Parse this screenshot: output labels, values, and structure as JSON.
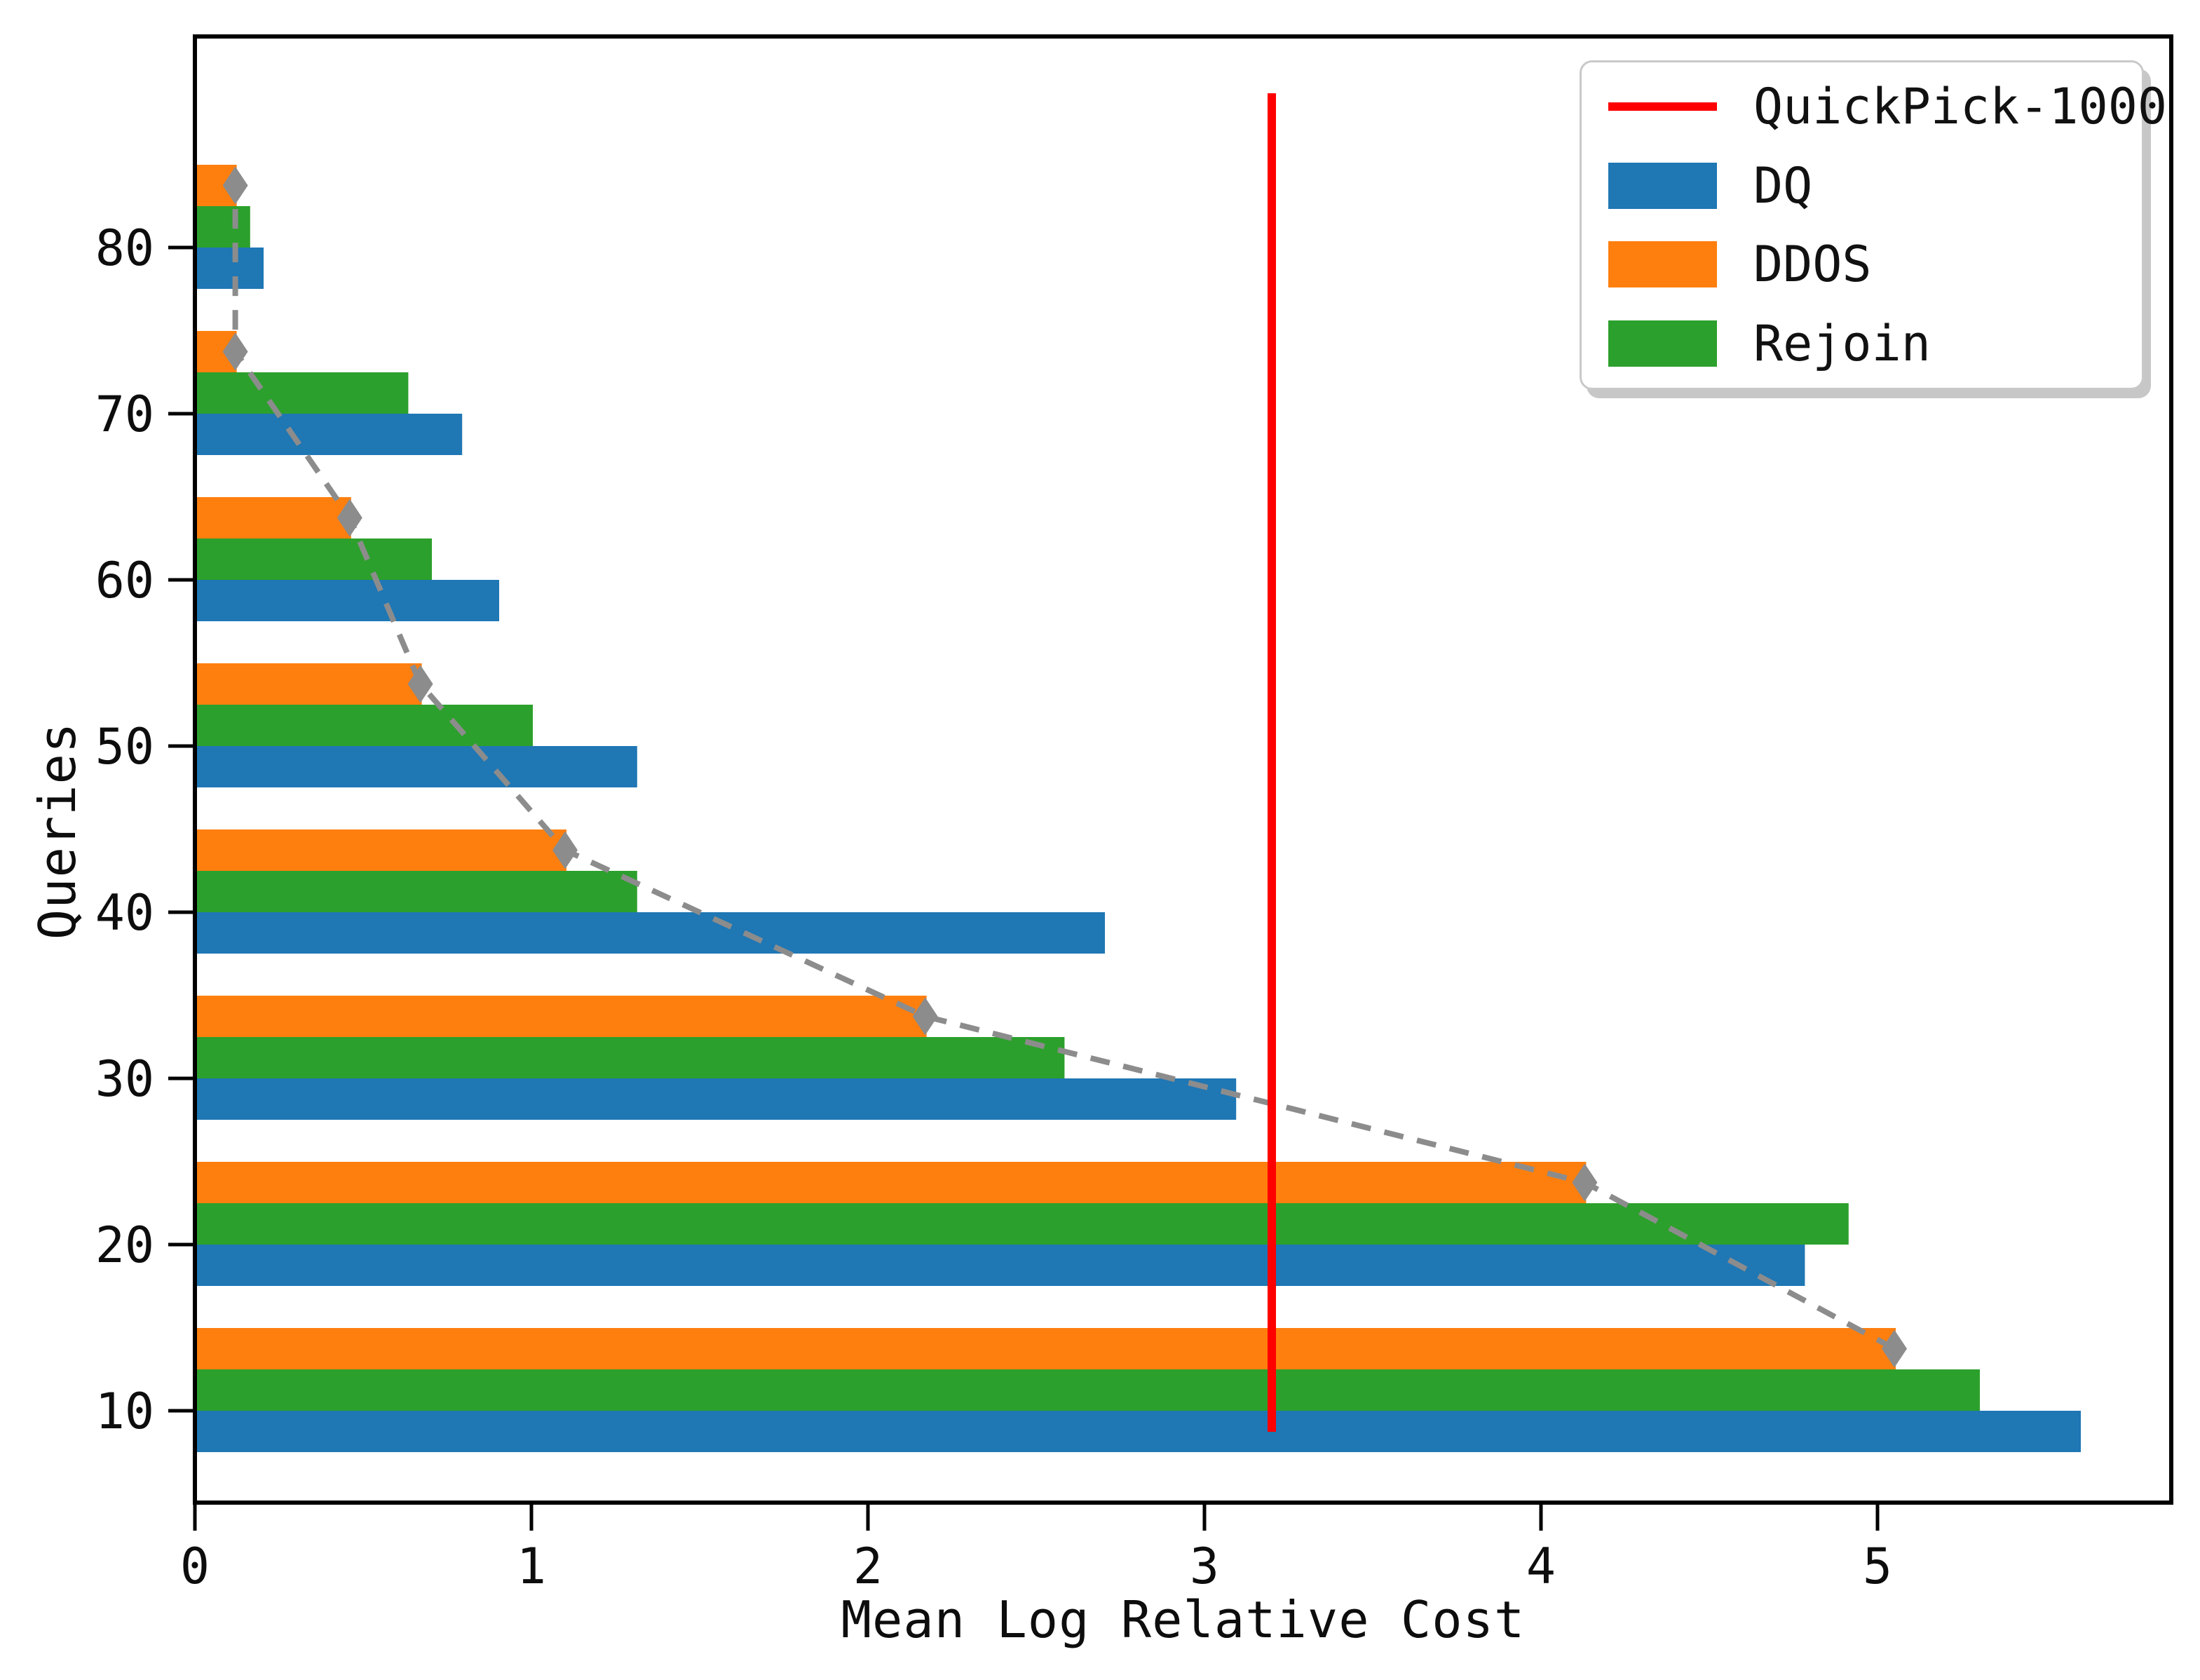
{
  "chart_data": {
    "type": "bar",
    "orientation": "horizontal",
    "xlabel": "Mean Log Relative Cost",
    "ylabel": "Queries",
    "xlim": [
      0,
      5.87
    ],
    "xticks": [
      0,
      1,
      2,
      3,
      4,
      5
    ],
    "yticks": [
      10,
      20,
      30,
      40,
      50,
      60,
      70,
      80
    ],
    "categories": [
      10,
      20,
      30,
      40,
      50,
      60,
      70,
      80
    ],
    "series": [
      {
        "name": "DQ",
        "color": "#1f77b4",
        "values": [
          5.6,
          4.78,
          3.09,
          2.7,
          1.31,
          0.9,
          0.79,
          0.2
        ]
      },
      {
        "name": "DDOS",
        "color": "#ff7f0e",
        "values": [
          5.05,
          4.13,
          2.17,
          1.1,
          0.67,
          0.46,
          0.12,
          0.12
        ]
      },
      {
        "name": "Rejoin",
        "color": "#2ca02c",
        "values": [
          5.3,
          4.91,
          2.58,
          1.31,
          1.0,
          0.7,
          0.63,
          0.16
        ]
      }
    ],
    "reference_line": {
      "name": "QuickPick-1000",
      "color": "#ff0000",
      "x": 3.2
    },
    "trend_line": {
      "style": "dashed",
      "color": "#8c8c8c",
      "marker": "diamond",
      "follows_series": "DDOS",
      "points": [
        [
          5.05,
          10
        ],
        [
          4.13,
          20
        ],
        [
          2.17,
          30
        ],
        [
          1.1,
          40
        ],
        [
          0.67,
          50
        ],
        [
          0.46,
          60
        ],
        [
          0.12,
          70
        ],
        [
          0.12,
          80
        ]
      ]
    },
    "legend": {
      "position": "upper right",
      "entries": [
        {
          "label": "QuickPick-1000",
          "swatch": "line",
          "color": "#ff0000"
        },
        {
          "label": "DQ",
          "swatch": "rect",
          "color": "#1f77b4"
        },
        {
          "label": "DDOS",
          "swatch": "rect",
          "color": "#ff7f0e"
        },
        {
          "label": "Rejoin",
          "swatch": "rect",
          "color": "#2ca02c"
        }
      ]
    },
    "grid": false,
    "title": ""
  }
}
